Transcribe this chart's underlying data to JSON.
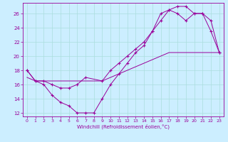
{
  "title": "",
  "xlabel": "Windchill (Refroidissement éolien,°C)",
  "ylabel": "",
  "bg_color": "#cceeff",
  "line_color": "#990099",
  "grid_color": "#aadddd",
  "xlim": [
    -0.5,
    23.5
  ],
  "ylim": [
    11.5,
    27.5
  ],
  "yticks": [
    12,
    14,
    16,
    18,
    20,
    22,
    24,
    26
  ],
  "xticks": [
    0,
    1,
    2,
    3,
    4,
    5,
    6,
    7,
    8,
    9,
    10,
    11,
    12,
    13,
    14,
    15,
    16,
    17,
    18,
    19,
    20,
    21,
    22,
    23
  ],
  "line1_x": [
    0,
    1,
    2,
    3,
    4,
    5,
    6,
    7,
    8,
    9,
    10,
    11,
    12,
    13,
    14,
    15,
    16,
    17,
    18,
    19,
    20,
    21,
    22,
    23
  ],
  "line1_y": [
    18.0,
    16.5,
    16.0,
    14.5,
    13.5,
    13.0,
    12.0,
    12.0,
    12.0,
    14.0,
    16.0,
    17.5,
    19.0,
    20.5,
    21.5,
    23.5,
    26.0,
    26.5,
    27.0,
    27.0,
    26.0,
    26.0,
    23.5,
    20.5
  ],
  "line2_x": [
    0,
    1,
    2,
    3,
    4,
    5,
    6,
    7,
    9,
    10,
    11,
    12,
    13,
    14,
    15,
    16,
    17,
    18,
    19,
    20,
    21,
    22,
    23
  ],
  "line2_y": [
    18.0,
    16.5,
    16.5,
    16.0,
    15.5,
    15.5,
    16.0,
    17.0,
    16.5,
    18.0,
    19.0,
    20.0,
    21.0,
    22.0,
    23.5,
    25.0,
    26.5,
    26.0,
    25.0,
    26.0,
    26.0,
    25.0,
    20.5
  ],
  "line3_x": [
    0,
    1,
    2,
    3,
    4,
    5,
    6,
    7,
    8,
    9,
    10,
    11,
    12,
    13,
    14,
    15,
    16,
    17,
    18,
    19,
    20,
    21,
    22,
    23
  ],
  "line3_y": [
    17.0,
    16.5,
    16.5,
    16.5,
    16.5,
    16.5,
    16.5,
    16.5,
    16.5,
    16.5,
    17.0,
    17.5,
    18.0,
    18.5,
    19.0,
    19.5,
    20.0,
    20.5,
    20.5,
    20.5,
    20.5,
    20.5,
    20.5,
    20.5
  ]
}
